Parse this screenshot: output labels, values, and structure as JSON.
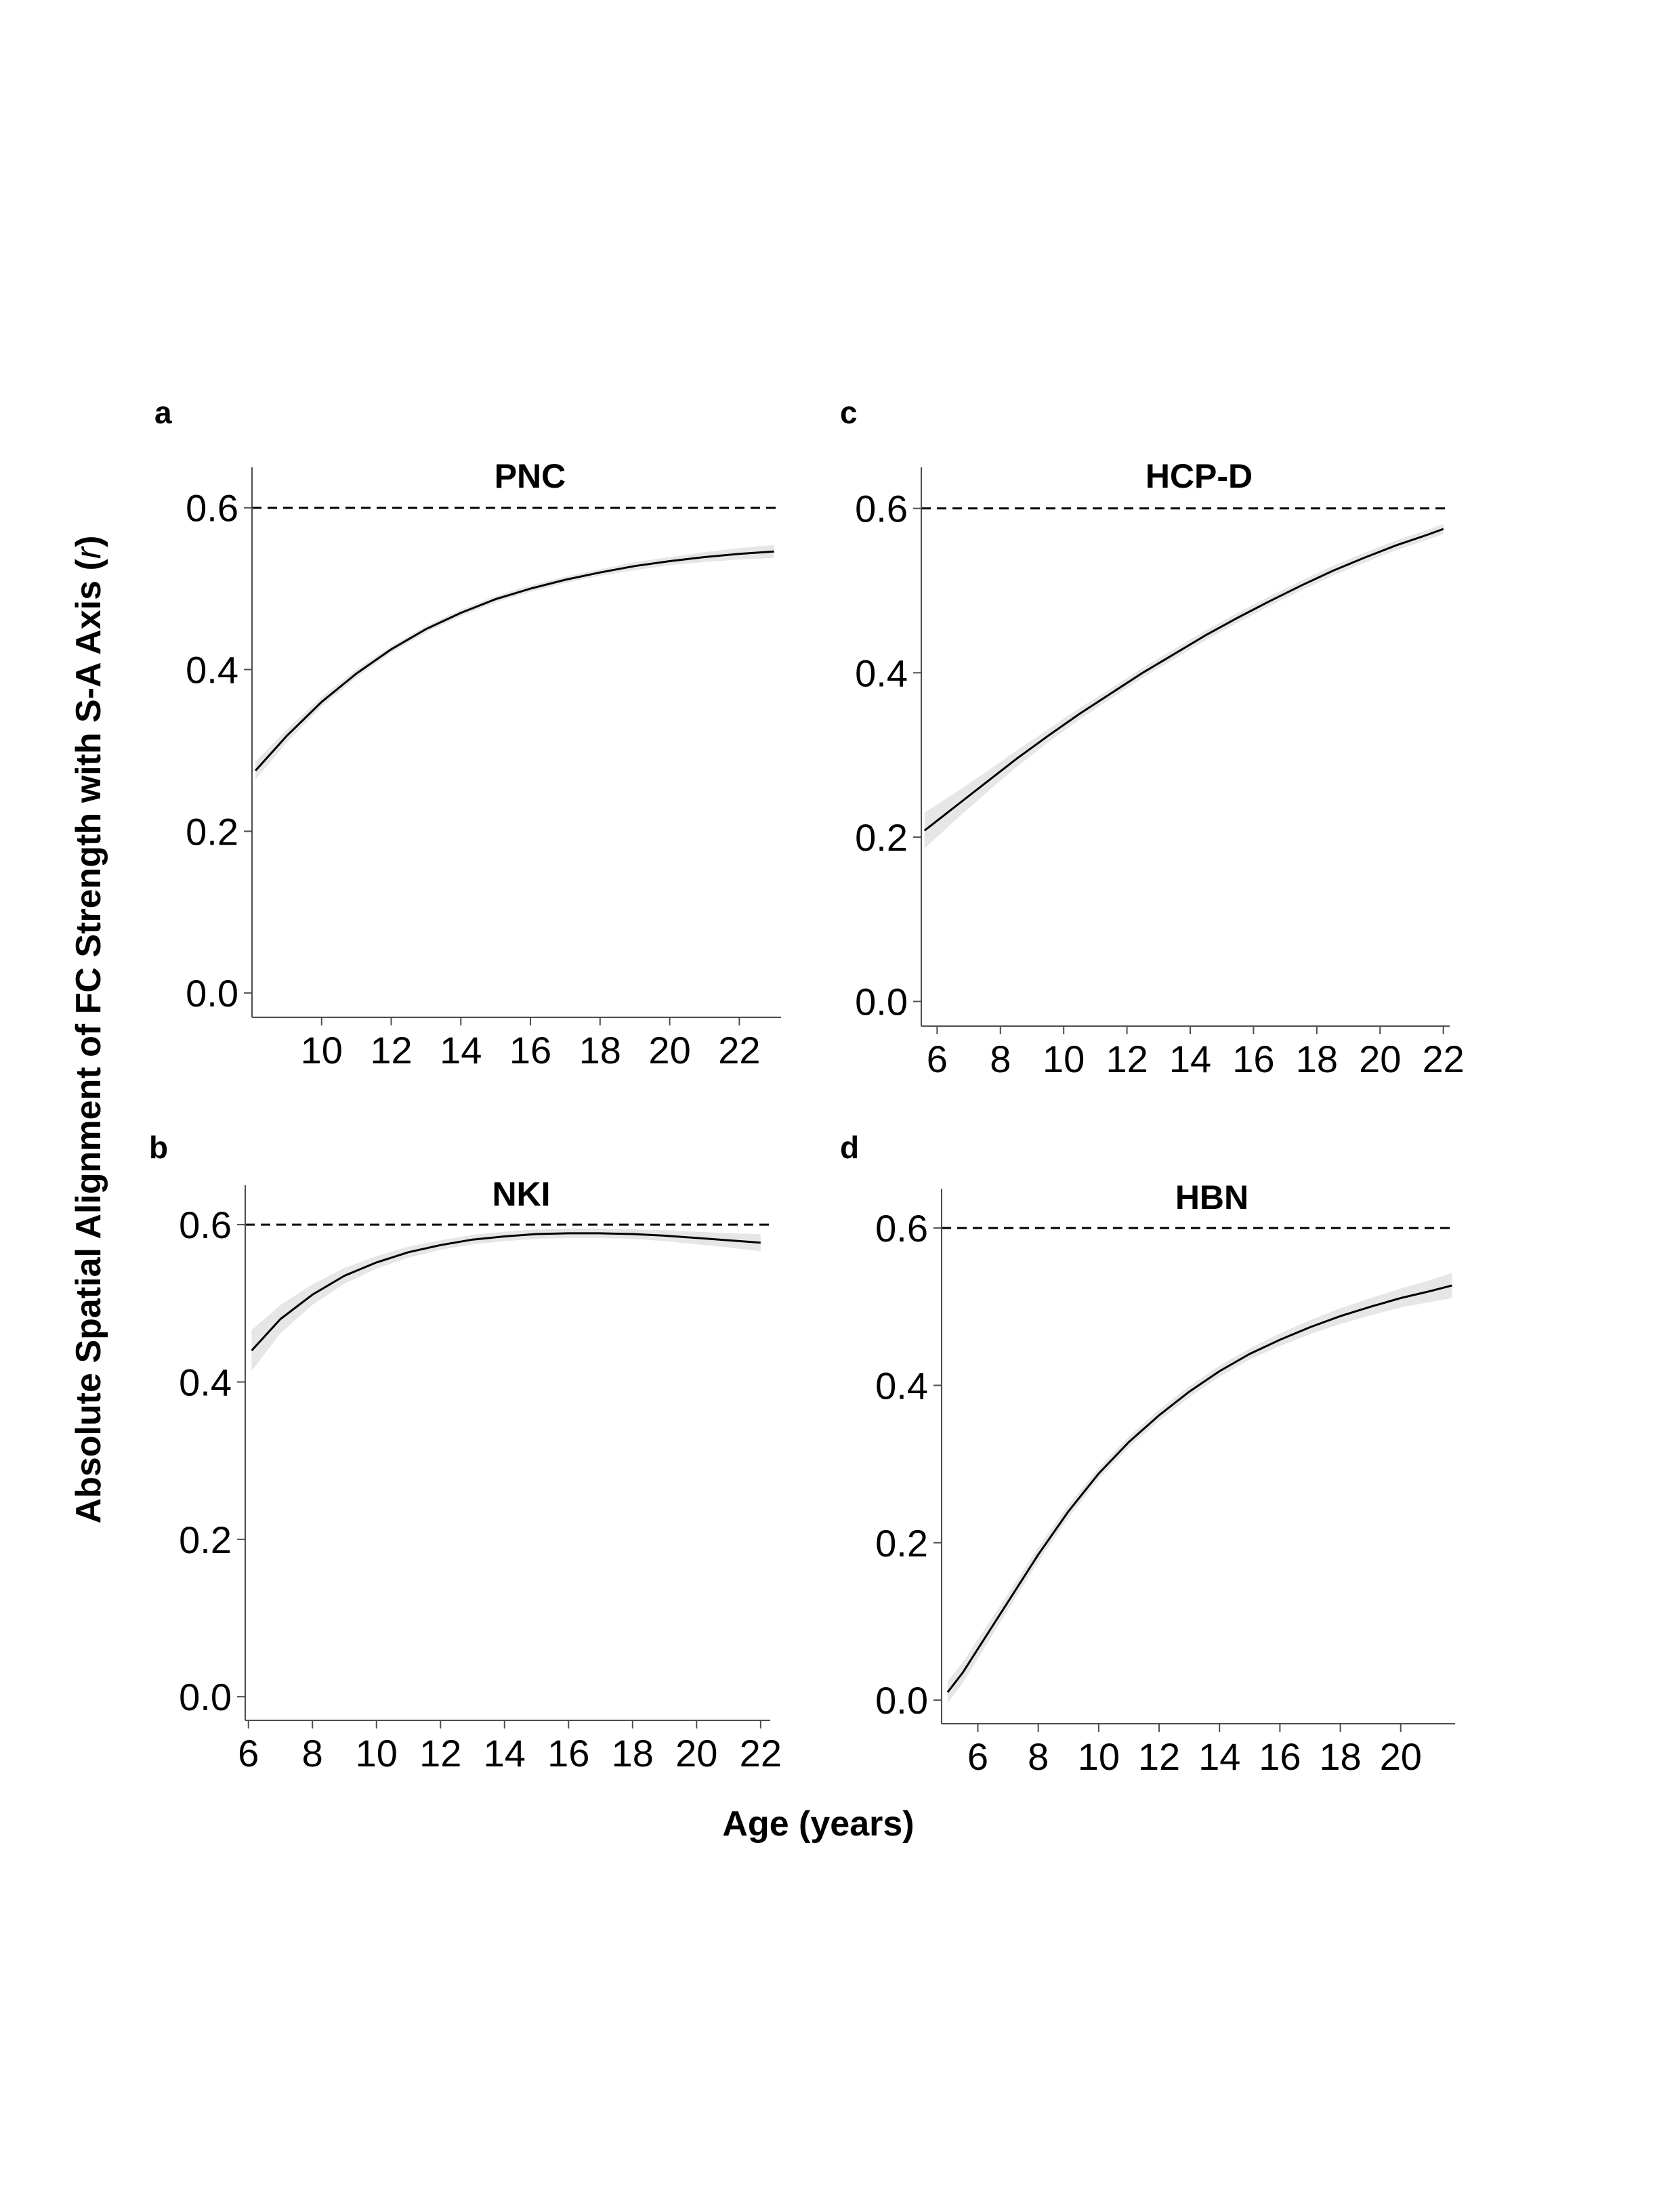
{
  "figure": {
    "ylabel_prefix": "Absolute Spatial Alignment of FC Strength with S-A Axis (",
    "ylabel_italic": "r",
    "ylabel_suffix": ")",
    "xlabel": "Age (years)"
  },
  "chart_data": [
    {
      "type": "line",
      "panel": "a",
      "title": "PNC",
      "xlim": [
        8,
        23.2
      ],
      "ylim": [
        -0.03,
        0.65
      ],
      "xticks": [
        10,
        12,
        14,
        16,
        18,
        20,
        22
      ],
      "yticks": [
        0.0,
        0.2,
        0.4,
        0.6
      ],
      "ytick_labels": [
        "0.0",
        "0.2",
        "0.4",
        "0.6"
      ],
      "reference_line": 0.6,
      "series": [
        {
          "x": [
            8.1,
            9,
            10,
            11,
            12,
            13,
            14,
            15,
            16,
            17,
            18,
            19,
            20,
            21,
            22,
            23
          ],
          "y": [
            0.275,
            0.318,
            0.36,
            0.395,
            0.425,
            0.45,
            0.47,
            0.487,
            0.5,
            0.511,
            0.52,
            0.528,
            0.534,
            0.539,
            0.543,
            0.546
          ],
          "ci_halfwidth": [
            0.011,
            0.008,
            0.006,
            0.005,
            0.004,
            0.004,
            0.004,
            0.004,
            0.004,
            0.004,
            0.004,
            0.005,
            0.005,
            0.006,
            0.007,
            0.008
          ]
        }
      ]
    },
    {
      "type": "line",
      "panel": "b",
      "title": "NKI",
      "xlim": [
        5.9,
        22.3
      ],
      "ylim": [
        -0.03,
        0.65
      ],
      "xticks": [
        6,
        8,
        10,
        12,
        14,
        16,
        18,
        20,
        22
      ],
      "yticks": [
        0.0,
        0.2,
        0.4,
        0.6
      ],
      "ytick_labels": [
        "0.0",
        "0.2",
        "0.4",
        "0.6"
      ],
      "reference_line": 0.6,
      "series": [
        {
          "x": [
            6.1,
            7,
            8,
            9,
            10,
            11,
            12,
            13,
            14,
            15,
            16,
            17,
            18,
            19,
            20,
            21,
            22
          ],
          "y": [
            0.44,
            0.48,
            0.511,
            0.535,
            0.552,
            0.565,
            0.574,
            0.581,
            0.585,
            0.588,
            0.589,
            0.589,
            0.588,
            0.586,
            0.583,
            0.58,
            0.577
          ],
          "ci_halfwidth": [
            0.026,
            0.018,
            0.013,
            0.01,
            0.008,
            0.007,
            0.006,
            0.006,
            0.006,
            0.006,
            0.006,
            0.006,
            0.006,
            0.007,
            0.008,
            0.009,
            0.011
          ]
        }
      ]
    },
    {
      "type": "line",
      "panel": "c",
      "title": "HCP-D",
      "xlim": [
        5.5,
        22.2
      ],
      "ylim": [
        -0.03,
        0.65
      ],
      "xticks": [
        6,
        8,
        10,
        12,
        14,
        16,
        18,
        20,
        22
      ],
      "yticks": [
        0.0,
        0.2,
        0.4,
        0.6
      ],
      "ytick_labels": [
        "0.0",
        "0.2",
        "0.4",
        "0.6"
      ],
      "reference_line": 0.6,
      "series": [
        {
          "x": [
            5.6,
            6.5,
            7.5,
            8.5,
            9.5,
            10.5,
            11.5,
            12.5,
            13.5,
            14.5,
            15.5,
            16.5,
            17.5,
            18.5,
            19.5,
            20.5,
            21.5,
            22
          ],
          "y": [
            0.208,
            0.235,
            0.265,
            0.295,
            0.323,
            0.35,
            0.375,
            0.4,
            0.423,
            0.446,
            0.467,
            0.487,
            0.506,
            0.524,
            0.54,
            0.555,
            0.568,
            0.575
          ],
          "ci_halfwidth": [
            0.022,
            0.017,
            0.013,
            0.01,
            0.008,
            0.007,
            0.006,
            0.006,
            0.006,
            0.006,
            0.006,
            0.006,
            0.006,
            0.006,
            0.006,
            0.006,
            0.006,
            0.006
          ]
        }
      ]
    },
    {
      "type": "line",
      "panel": "d",
      "title": "HBN",
      "xlim": [
        4.8,
        21.8
      ],
      "ylim": [
        -0.03,
        0.65
      ],
      "xticks": [
        6,
        8,
        10,
        12,
        14,
        16,
        18,
        20
      ],
      "yticks": [
        0.0,
        0.2,
        0.4,
        0.6
      ],
      "ytick_labels": [
        "0.0",
        "0.2",
        "0.4",
        "0.6"
      ],
      "reference_line": 0.6,
      "series": [
        {
          "x": [
            5,
            5.5,
            6,
            7,
            8,
            9,
            10,
            11,
            12,
            13,
            14,
            15,
            16,
            17,
            18,
            19,
            20,
            21,
            21.7
          ],
          "y": [
            0.01,
            0.035,
            0.065,
            0.125,
            0.185,
            0.24,
            0.288,
            0.328,
            0.362,
            0.392,
            0.418,
            0.44,
            0.458,
            0.474,
            0.488,
            0.5,
            0.511,
            0.52,
            0.527
          ],
          "ci_halfwidth": [
            0.014,
            0.013,
            0.012,
            0.01,
            0.009,
            0.008,
            0.007,
            0.007,
            0.007,
            0.007,
            0.007,
            0.007,
            0.008,
            0.009,
            0.01,
            0.011,
            0.012,
            0.014,
            0.016
          ]
        }
      ]
    }
  ]
}
